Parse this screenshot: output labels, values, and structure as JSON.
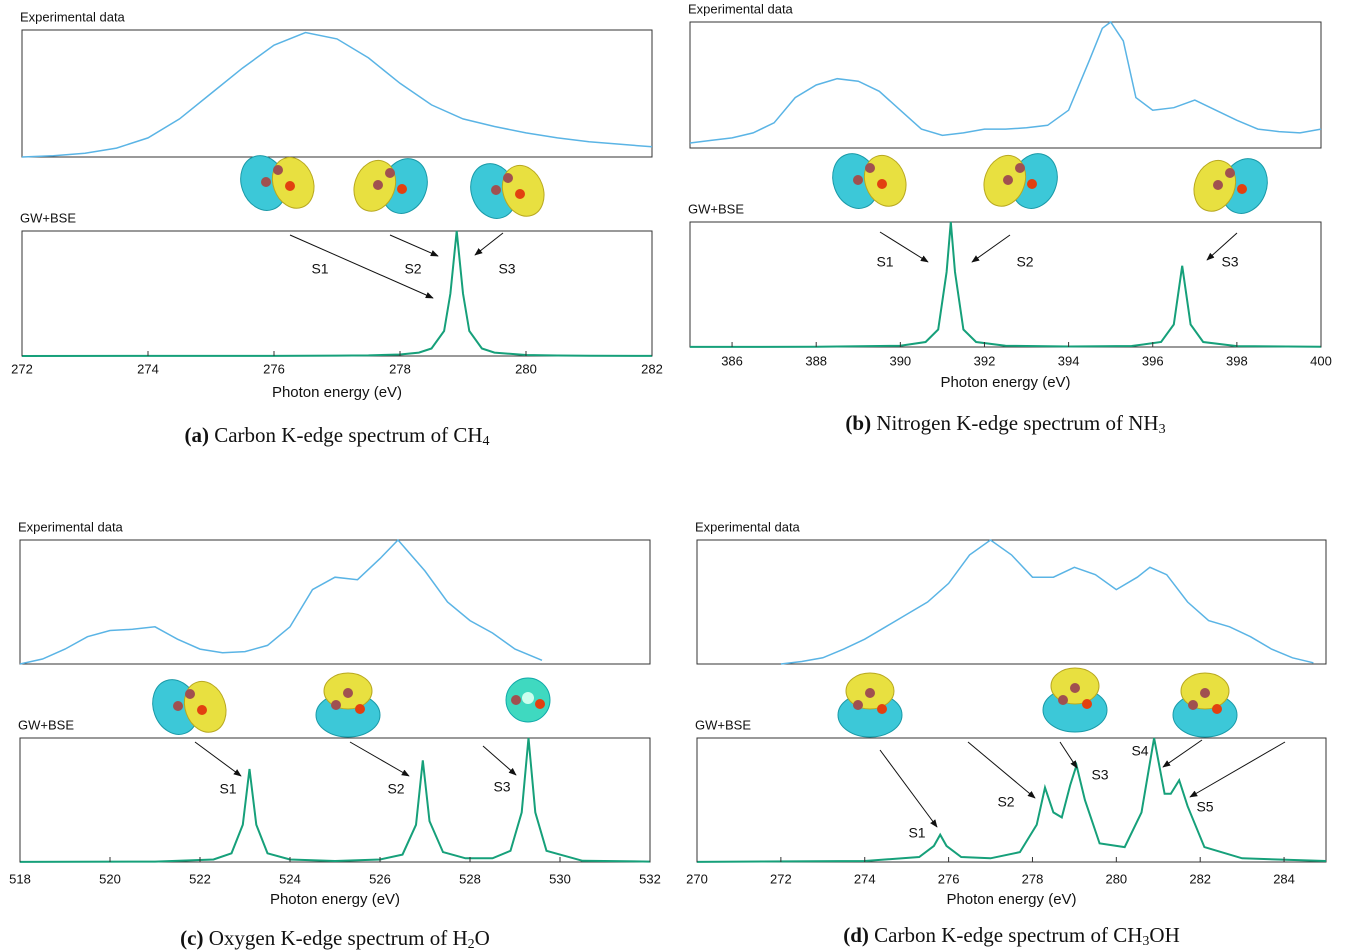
{
  "chart_data": [
    {
      "type": "line",
      "xlim": [
        272,
        282
      ],
      "xticks": [
        272,
        274,
        276,
        278,
        280,
        282
      ],
      "ylim": [
        0,
        1
      ],
      "xlabel": "Photon energy (eV)",
      "experimental": {
        "title": "Experimental data",
        "color": "#5ab4e5",
        "x": [
          272,
          272.5,
          273,
          273.5,
          274,
          274.5,
          275,
          275.5,
          276,
          276.5,
          277,
          277.5,
          278,
          278.5,
          279,
          279.5,
          280,
          280.5,
          281,
          281.5,
          282
        ],
        "values": [
          0,
          0.01,
          0.03,
          0.07,
          0.15,
          0.3,
          0.5,
          0.7,
          0.88,
          0.98,
          0.93,
          0.78,
          0.58,
          0.41,
          0.3,
          0.24,
          0.19,
          0.15,
          0.12,
          0.1,
          0.08
        ]
      },
      "theory": {
        "title": "GW+BSE",
        "color": "#16a07a",
        "x": [
          272,
          274,
          276,
          277,
          277.5,
          278,
          278.3,
          278.5,
          278.7,
          278.8,
          278.9,
          279,
          279.1,
          279.3,
          279.5,
          280,
          280.5,
          281,
          282
        ],
        "values": [
          0.0002,
          0.0004,
          0.0012,
          0.003,
          0.005,
          0.012,
          0.027,
          0.06,
          0.2,
          0.5,
          1.0,
          0.5,
          0.2,
          0.06,
          0.027,
          0.008,
          0.004,
          0.002,
          0.001
        ]
      },
      "annotations": [
        "S1",
        "S2",
        "S3"
      ],
      "caption": {
        "label": "(a)",
        "text": " Carbon K-edge spectrum of CH",
        "sub": "4"
      }
    },
    {
      "type": "line",
      "xlim": [
        385,
        400
      ],
      "xticks": [
        386,
        388,
        390,
        392,
        394,
        396,
        398,
        400
      ],
      "ylim": [
        0,
        1
      ],
      "xlabel": "Photon energy (eV)",
      "experimental": {
        "title": "Experimental data",
        "color": "#5ab4e5",
        "x": [
          385,
          385.5,
          386,
          386.5,
          387,
          387.5,
          388,
          388.5,
          389,
          389.5,
          390,
          390.5,
          391,
          391.5,
          392,
          392.5,
          393,
          393.5,
          394,
          394.5,
          394.8,
          395,
          395.3,
          395.6,
          396,
          396.5,
          397,
          397.5,
          398,
          398.5,
          399,
          399.5,
          400
        ],
        "values": [
          0.04,
          0.06,
          0.08,
          0.12,
          0.2,
          0.4,
          0.5,
          0.55,
          0.53,
          0.45,
          0.3,
          0.15,
          0.1,
          0.12,
          0.15,
          0.15,
          0.16,
          0.18,
          0.3,
          0.7,
          0.95,
          1.0,
          0.85,
          0.4,
          0.3,
          0.32,
          0.38,
          0.3,
          0.22,
          0.15,
          0.13,
          0.12,
          0.15
        ]
      },
      "theory": {
        "title": "GW+BSE",
        "color": "#16a07a",
        "x": [
          385,
          388,
          390,
          390.6,
          390.9,
          391.1,
          391.2,
          391.3,
          391.5,
          391.8,
          392.5,
          394,
          395.5,
          396.2,
          396.5,
          396.7,
          396.9,
          397.2,
          398,
          400
        ],
        "values": [
          0.0004,
          0.002,
          0.01,
          0.04,
          0.14,
          0.6,
          1.0,
          0.6,
          0.14,
          0.04,
          0.01,
          0.004,
          0.008,
          0.04,
          0.18,
          0.65,
          0.18,
          0.04,
          0.007,
          0.002
        ]
      },
      "annotations": [
        "S1",
        "S2",
        "S3"
      ],
      "caption": {
        "label": "(b)",
        "text": " Nitrogen K-edge spectrum of NH",
        "sub": "3"
      }
    },
    {
      "type": "line",
      "xlim": [
        518,
        532
      ],
      "xticks": [
        518,
        520,
        522,
        524,
        526,
        528,
        530,
        532
      ],
      "ylim": [
        0,
        1
      ],
      "xlabel": "Photon energy (eV)",
      "experimental": {
        "title": "Experimental data",
        "color": "#5ab4e5",
        "x": [
          518,
          518.5,
          519,
          519.5,
          520,
          520.5,
          521,
          521.5,
          522,
          522.5,
          523,
          523.5,
          524,
          524.5,
          525,
          525.5,
          526,
          526.4,
          527,
          527.5,
          528,
          528.5,
          529,
          529.6
        ],
        "values": [
          0,
          0.04,
          0.12,
          0.22,
          0.27,
          0.28,
          0.3,
          0.2,
          0.12,
          0.09,
          0.1,
          0.15,
          0.3,
          0.6,
          0.7,
          0.68,
          0.85,
          1.0,
          0.75,
          0.5,
          0.35,
          0.25,
          0.12,
          0.03
        ]
      },
      "theory": {
        "title": "GW+BSE",
        "color": "#16a07a",
        "x": [
          518,
          521,
          522.3,
          522.7,
          522.95,
          523.1,
          523.25,
          523.5,
          524,
          525,
          526,
          526.5,
          526.8,
          526.95,
          527.1,
          527.4,
          527.9,
          528.5,
          528.9,
          529.15,
          529.3,
          529.45,
          529.7,
          530.5,
          532
        ],
        "values": [
          0.0005,
          0.003,
          0.02,
          0.07,
          0.3,
          0.75,
          0.3,
          0.07,
          0.02,
          0.008,
          0.02,
          0.06,
          0.3,
          0.82,
          0.33,
          0.08,
          0.03,
          0.03,
          0.09,
          0.4,
          1.0,
          0.4,
          0.09,
          0.01,
          0.003
        ]
      },
      "annotations": [
        "S1",
        "S2",
        "S3"
      ],
      "caption": {
        "label": "(c)",
        "text": " Oxygen K-edge spectrum of H",
        "sub": "2",
        "tail": "O"
      }
    },
    {
      "type": "line",
      "xlim": [
        270,
        285
      ],
      "xticks": [
        270,
        272,
        274,
        276,
        278,
        280,
        282,
        284
      ],
      "ylim": [
        0,
        1
      ],
      "xlabel": "Photon energy (eV)",
      "experimental": {
        "title": "Experimental data",
        "color": "#5ab4e5",
        "x": [
          272,
          272.5,
          273,
          273.5,
          274,
          274.5,
          275,
          275.5,
          276,
          276.5,
          277,
          277.5,
          278,
          278.5,
          279,
          279.5,
          280,
          280.5,
          280.8,
          281.2,
          281.7,
          282.2,
          282.7,
          283.2,
          283.7,
          284.2,
          284.7
        ],
        "values": [
          0,
          0.02,
          0.05,
          0.12,
          0.2,
          0.3,
          0.4,
          0.5,
          0.65,
          0.88,
          1.0,
          0.88,
          0.7,
          0.7,
          0.78,
          0.72,
          0.6,
          0.7,
          0.78,
          0.72,
          0.5,
          0.35,
          0.3,
          0.22,
          0.12,
          0.05,
          0.01
        ]
      },
      "theory": {
        "title": "GW+BSE",
        "color": "#16a07a",
        "x": [
          270,
          274,
          275.3,
          275.65,
          275.8,
          275.95,
          276.3,
          277,
          277.7,
          278.1,
          278.3,
          278.5,
          278.7,
          278.9,
          279.05,
          279.25,
          279.6,
          280.2,
          280.6,
          280.9,
          281.15,
          281.3,
          281.5,
          281.7,
          282.1,
          283,
          285
        ],
        "values": [
          0.001,
          0.008,
          0.04,
          0.13,
          0.22,
          0.13,
          0.04,
          0.03,
          0.08,
          0.3,
          0.6,
          0.4,
          0.36,
          0.62,
          0.78,
          0.5,
          0.15,
          0.12,
          0.4,
          1.0,
          0.55,
          0.55,
          0.66,
          0.45,
          0.12,
          0.03,
          0.008
        ]
      },
      "annotations": [
        "S1",
        "S2",
        "S3",
        "S4",
        "S5"
      ],
      "caption": {
        "label": "(d)",
        "text": " Carbon K-edge spectrum of CH",
        "sub": "3",
        "tail": "OH"
      }
    }
  ]
}
